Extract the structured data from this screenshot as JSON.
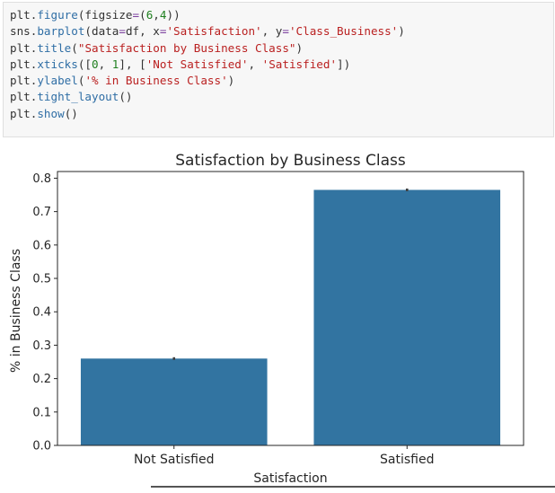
{
  "code_cell": {
    "lines": [
      [
        {
          "t": "plt.",
          "c": "tok-obj"
        },
        {
          "t": "figure",
          "c": "tok-func"
        },
        {
          "t": "(figsize",
          "c": "tok-obj"
        },
        {
          "t": "=",
          "c": "tok-op"
        },
        {
          "t": "(",
          "c": "tok-obj"
        },
        {
          "t": "6",
          "c": "tok-num"
        },
        {
          "t": ",",
          "c": "tok-obj"
        },
        {
          "t": "4",
          "c": "tok-num"
        },
        {
          "t": "))",
          "c": "tok-obj"
        }
      ],
      [
        {
          "t": "sns.",
          "c": "tok-obj"
        },
        {
          "t": "barplot",
          "c": "tok-func"
        },
        {
          "t": "(data",
          "c": "tok-obj"
        },
        {
          "t": "=",
          "c": "tok-op"
        },
        {
          "t": "df, x",
          "c": "tok-obj"
        },
        {
          "t": "=",
          "c": "tok-op"
        },
        {
          "t": "'Satisfaction'",
          "c": "tok-str"
        },
        {
          "t": ", y",
          "c": "tok-obj"
        },
        {
          "t": "=",
          "c": "tok-op"
        },
        {
          "t": "'Class_Business'",
          "c": "tok-str"
        },
        {
          "t": ")",
          "c": "tok-obj"
        }
      ],
      [
        {
          "t": "plt.",
          "c": "tok-obj"
        },
        {
          "t": "title",
          "c": "tok-func"
        },
        {
          "t": "(",
          "c": "tok-obj"
        },
        {
          "t": "\"Satisfaction by Business Class\"",
          "c": "tok-str"
        },
        {
          "t": ")",
          "c": "tok-obj"
        }
      ],
      [
        {
          "t": "plt.",
          "c": "tok-obj"
        },
        {
          "t": "xticks",
          "c": "tok-func"
        },
        {
          "t": "([",
          "c": "tok-obj"
        },
        {
          "t": "0",
          "c": "tok-num"
        },
        {
          "t": ", ",
          "c": "tok-obj"
        },
        {
          "t": "1",
          "c": "tok-num"
        },
        {
          "t": "], [",
          "c": "tok-obj"
        },
        {
          "t": "'Not Satisfied'",
          "c": "tok-str"
        },
        {
          "t": ", ",
          "c": "tok-obj"
        },
        {
          "t": "'Satisfied'",
          "c": "tok-str"
        },
        {
          "t": "])",
          "c": "tok-obj"
        }
      ],
      [
        {
          "t": "plt.",
          "c": "tok-obj"
        },
        {
          "t": "ylabel",
          "c": "tok-func"
        },
        {
          "t": "(",
          "c": "tok-obj"
        },
        {
          "t": "'% in Business Class'",
          "c": "tok-str"
        },
        {
          "t": ")",
          "c": "tok-obj"
        }
      ],
      [
        {
          "t": "plt.",
          "c": "tok-obj"
        },
        {
          "t": "tight_layout",
          "c": "tok-func"
        },
        {
          "t": "()",
          "c": "tok-obj"
        }
      ],
      [
        {
          "t": "plt.",
          "c": "tok-obj"
        },
        {
          "t": "show",
          "c": "tok-func"
        },
        {
          "t": "()",
          "c": "tok-obj"
        }
      ]
    ]
  },
  "chart_data": {
    "type": "bar",
    "title": "Satisfaction by Business Class",
    "xlabel": "Satisfaction",
    "ylabel": "% in Business Class",
    "categories": [
      "Not Satisfied",
      "Satisfied"
    ],
    "values": [
      0.26,
      0.765
    ],
    "error_bars": [
      [
        0.256,
        0.264
      ],
      [
        0.761,
        0.769
      ]
    ],
    "ylim": [
      0,
      0.82
    ],
    "yticks": [
      0.0,
      0.1,
      0.2,
      0.3,
      0.4,
      0.5,
      0.6,
      0.7,
      0.8
    ],
    "ytick_labels": [
      "0.0",
      "0.1",
      "0.2",
      "0.3",
      "0.4",
      "0.5",
      "0.6",
      "0.7",
      "0.8"
    ],
    "bar_color": "#3274a1",
    "grid": false,
    "legend": "none"
  }
}
